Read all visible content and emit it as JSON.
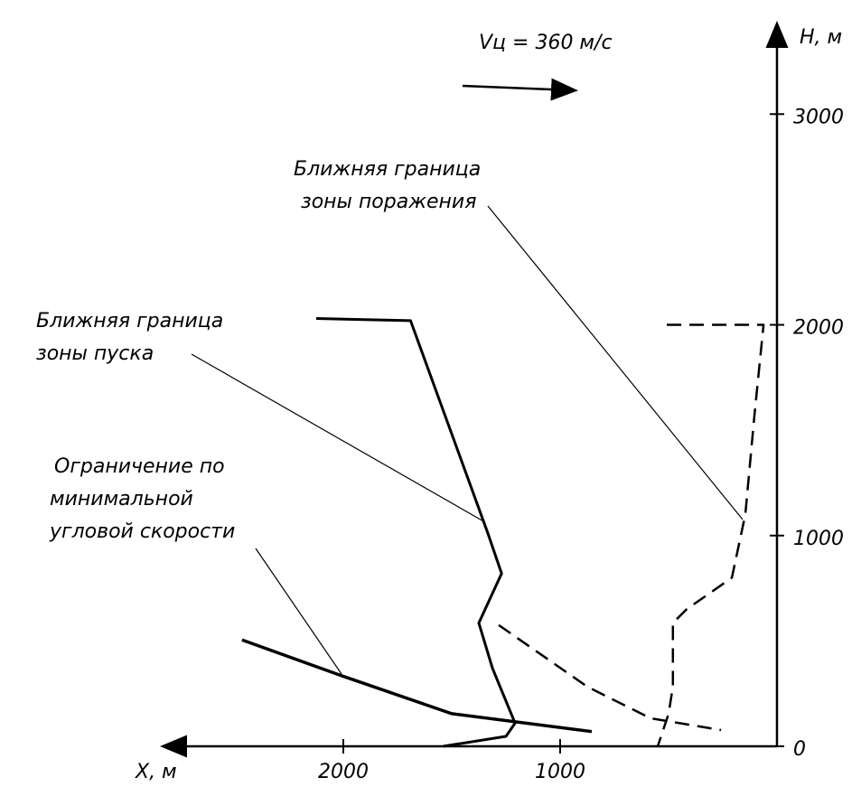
{
  "chart_data": {
    "type": "line",
    "title": "Vц = 360 м/с",
    "x_label": "X, м",
    "y_label": "H, м",
    "xlim": [
      2800,
      0
    ],
    "ylim": [
      0,
      3400
    ],
    "xticks": [
      1000,
      2000
    ],
    "yticks": [
      0,
      1000,
      2000,
      3000
    ],
    "series": [
      {
        "color": "#000000",
        "dashed": false,
        "width": 3,
        "x": [
          2125,
          1690,
          1333,
          1270,
          1375,
          1312,
          1208,
          1250,
          1540
        ],
        "values": [
          2030,
          2020,
          1010,
          820,
          585,
          370,
          110,
          47,
          0
        ]
      },
      {
        "color": "#000000",
        "dashed": true,
        "width": 2.5,
        "x": [
          508,
          62,
          104,
          146,
          208,
          417,
          480,
          480,
          500,
          550
        ],
        "values": [
          2000,
          2000,
          1570,
          1100,
          800,
          650,
          585,
          283,
          154,
          0
        ]
      },
      {
        "color": "#000000",
        "dashed": false,
        "width": 3.5,
        "x": [
          2467,
          2008,
          1500,
          854
        ],
        "values": [
          505,
          335,
          155,
          70
        ]
      },
      {
        "color": "#000000",
        "dashed": true,
        "width": 2.5,
        "x": [
          1283,
          875,
          583,
          258
        ],
        "values": [
          575,
          283,
          133,
          77
        ]
      }
    ],
    "annotations": [
      {
        "lines": [
          "Ближняя граница",
          "зоны поражения"
        ]
      },
      {
        "lines": [
          "Ближняя граница",
          "зоны пуска"
        ]
      },
      {
        "lines": [
          "Ограничение по",
          "минимальной",
          "угловой скорости"
        ]
      }
    ]
  }
}
